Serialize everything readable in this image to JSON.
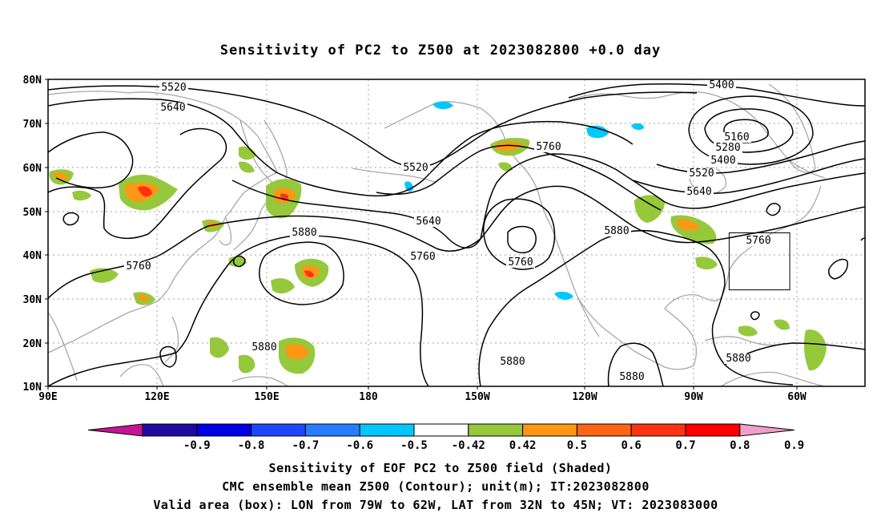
{
  "title": "Sensitivity of PC2 to Z500 at 2023082800 +0.0 day",
  "lat_labels": [
    "80N",
    "70N",
    "60N",
    "50N",
    "40N",
    "30N",
    "20N",
    "10N"
  ],
  "lon_labels": [
    "90E",
    "120E",
    "150E",
    "180",
    "150W",
    "120W",
    "90W",
    "60W"
  ],
  "contour_labels": [
    {
      "id": "z5520-nw",
      "text": "5520"
    },
    {
      "id": "z5640-nw",
      "text": "5640"
    },
    {
      "id": "z5400-ne",
      "text": "5400"
    },
    {
      "id": "z5160-low",
      "text": "5160"
    },
    {
      "id": "z5280-low",
      "text": "5280"
    },
    {
      "id": "z5400-low",
      "text": "5400"
    },
    {
      "id": "z5520-low",
      "text": "5520"
    },
    {
      "id": "z5640-low",
      "text": "5640"
    },
    {
      "id": "z5760-alaska",
      "text": "5760"
    },
    {
      "id": "z5520-mid",
      "text": "5520"
    },
    {
      "id": "z5640-mid",
      "text": "5640"
    },
    {
      "id": "z5760-mid",
      "text": "5760"
    },
    {
      "id": "z5880-cpac",
      "text": "5880"
    },
    {
      "id": "z5760-asia",
      "text": "5760"
    },
    {
      "id": "z5760-cutoff",
      "text": "5760"
    },
    {
      "id": "z5880-us",
      "text": "5880"
    },
    {
      "id": "z5760-east",
      "text": "5760"
    },
    {
      "id": "z5880-wpac",
      "text": "5880"
    },
    {
      "id": "z5880-epac",
      "text": "5880"
    },
    {
      "id": "z5880-mex",
      "text": "5880"
    },
    {
      "id": "z5880-carib",
      "text": "5880"
    }
  ],
  "colorbar": {
    "labels": [
      "-0.9",
      "-0.8",
      "-0.7",
      "-0.6",
      "-0.5",
      "-0.42",
      "0.42",
      "0.5",
      "0.6",
      "0.7",
      "0.8",
      "0.9"
    ],
    "low_extend_color": "#c41493",
    "high_extend_color": "#f0a0c8",
    "colors": [
      "#1e0aa0",
      "#0000e6",
      "#1e46ff",
      "#287dff",
      "#00c8ff",
      "#ffffff",
      "#96c83c",
      "#ff9614",
      "#ff6414",
      "#ff3214",
      "#ff0000"
    ]
  },
  "captions": [
    "Sensitivity of EOF PC2 to Z500 field (Shaded)",
    "CMC ensemble mean Z500 (Contour); unit(m); IT:2023082800",
    "Valid area (box): LON from 79W to 62W, LAT from 32N to 45N; VT: 2023083000"
  ],
  "valid_box": {
    "lon_w": -79,
    "lon_e": -62,
    "lat_s": 32,
    "lat_n": 45
  },
  "colors": {
    "coast": "#a8a8a8",
    "grid": "#a0a0a0",
    "contour": "#000000",
    "positive": "#96c83c",
    "positive_mid": "#ff9614",
    "positive_high": "#ff3214",
    "negative": "#00c8ff"
  }
}
